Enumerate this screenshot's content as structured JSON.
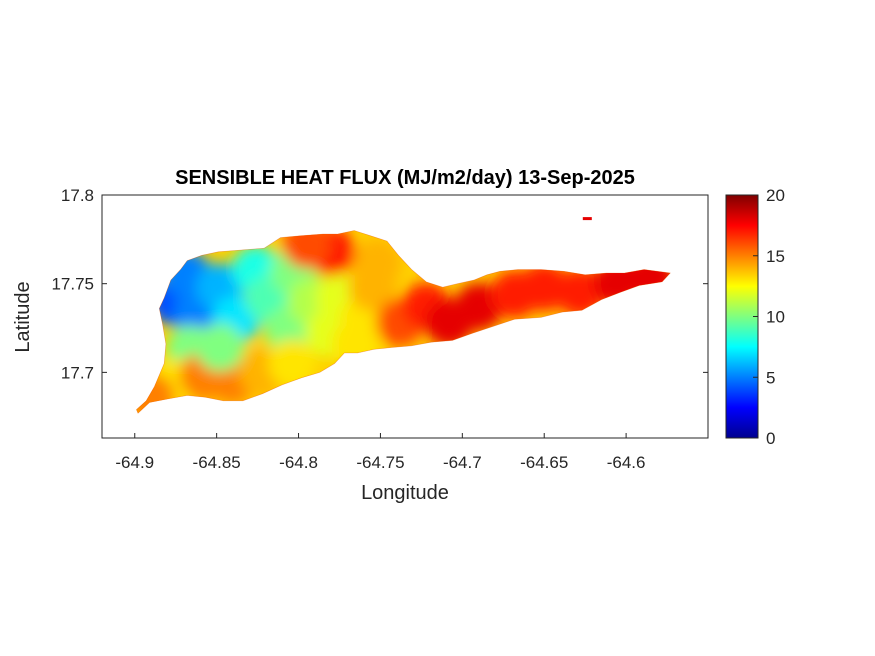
{
  "chart_data": {
    "type": "heatmap",
    "title": "SENSIBLE HEAT FLUX (MJ/m2/day) 13-Sep-2025",
    "xlabel": "Longitude",
    "ylabel": "Latitude",
    "xlim": [
      -64.92,
      -64.55
    ],
    "ylim": [
      17.663,
      17.8
    ],
    "xticks": [
      -64.9,
      -64.85,
      -64.8,
      -64.75,
      -64.7,
      -64.65,
      -64.6
    ],
    "xtick_labels": [
      "-64.9",
      "-64.85",
      "-64.8",
      "-64.75",
      "-64.7",
      "-64.65",
      "-64.6"
    ],
    "yticks": [
      17.7,
      17.75,
      17.8
    ],
    "ytick_labels": [
      "17.7",
      "17.75",
      "17.8"
    ],
    "colorbar": {
      "colormap": "jet",
      "range": [
        0,
        20
      ],
      "ticks": [
        0,
        5,
        10,
        15,
        20
      ],
      "tick_labels": [
        "0",
        "5",
        "10",
        "15",
        "20"
      ]
    },
    "region_outline": [
      [
        -64.899,
        17.679
      ],
      [
        -64.893,
        17.684
      ],
      [
        -64.888,
        17.692
      ],
      [
        -64.882,
        17.705
      ],
      [
        -64.881,
        17.716
      ],
      [
        -64.883,
        17.727
      ],
      [
        -64.885,
        17.736
      ],
      [
        -64.882,
        17.742
      ],
      [
        -64.878,
        17.752
      ],
      [
        -64.872,
        17.758
      ],
      [
        -64.868,
        17.763
      ],
      [
        -64.859,
        17.766
      ],
      [
        -64.849,
        17.768
      ],
      [
        -64.835,
        17.769
      ],
      [
        -64.821,
        17.77
      ],
      [
        -64.811,
        17.776
      ],
      [
        -64.799,
        17.777
      ],
      [
        -64.785,
        17.778
      ],
      [
        -64.776,
        17.778
      ],
      [
        -64.766,
        17.78
      ],
      [
        -64.756,
        17.777
      ],
      [
        -64.746,
        17.774
      ],
      [
        -64.739,
        17.766
      ],
      [
        -64.731,
        17.758
      ],
      [
        -64.722,
        17.751
      ],
      [
        -64.712,
        17.748
      ],
      [
        -64.703,
        17.75
      ],
      [
        -64.693,
        17.752
      ],
      [
        -64.685,
        17.755
      ],
      [
        -64.677,
        17.757
      ],
      [
        -64.666,
        17.758
      ],
      [
        -64.652,
        17.758
      ],
      [
        -64.638,
        17.757
      ],
      [
        -64.625,
        17.755
      ],
      [
        -64.612,
        17.756
      ],
      [
        -64.601,
        17.756
      ],
      [
        -64.589,
        17.758
      ],
      [
        -64.573,
        17.756
      ],
      [
        -64.578,
        17.751
      ],
      [
        -64.592,
        17.749
      ],
      [
        -64.604,
        17.745
      ],
      [
        -64.615,
        17.741
      ],
      [
        -64.627,
        17.735
      ],
      [
        -64.639,
        17.734
      ],
      [
        -64.652,
        17.731
      ],
      [
        -64.668,
        17.73
      ],
      [
        -64.681,
        17.726
      ],
      [
        -64.694,
        17.722
      ],
      [
        -64.706,
        17.718
      ],
      [
        -64.719,
        17.717
      ],
      [
        -64.731,
        17.715
      ],
      [
        -64.743,
        17.714
      ],
      [
        -64.754,
        17.713
      ],
      [
        -64.764,
        17.711
      ],
      [
        -64.772,
        17.711
      ],
      [
        -64.778,
        17.705
      ],
      [
        -64.787,
        17.7
      ],
      [
        -64.798,
        17.697
      ],
      [
        -64.81,
        17.693
      ],
      [
        -64.822,
        17.688
      ],
      [
        -64.834,
        17.684
      ],
      [
        -64.846,
        17.684
      ],
      [
        -64.857,
        17.686
      ],
      [
        -64.868,
        17.687
      ],
      [
        -64.88,
        17.685
      ],
      [
        -64.891,
        17.683
      ],
      [
        -64.898,
        17.677
      ]
    ],
    "flux_samples": [
      {
        "lon": -64.876,
        "lat": 17.74,
        "value": 4
      },
      {
        "lon": -64.862,
        "lat": 17.732,
        "value": 5
      },
      {
        "lon": -64.868,
        "lat": 17.755,
        "value": 5
      },
      {
        "lon": -64.848,
        "lat": 17.748,
        "value": 6
      },
      {
        "lon": -64.838,
        "lat": 17.73,
        "value": 7
      },
      {
        "lon": -64.826,
        "lat": 17.758,
        "value": 8
      },
      {
        "lon": -64.818,
        "lat": 17.741,
        "value": 9
      },
      {
        "lon": -64.806,
        "lat": 17.724,
        "value": 10
      },
      {
        "lon": -64.803,
        "lat": 17.757,
        "value": 10
      },
      {
        "lon": -64.792,
        "lat": 17.74,
        "value": 11
      },
      {
        "lon": -64.781,
        "lat": 17.722,
        "value": 12
      },
      {
        "lon": -64.775,
        "lat": 17.742,
        "value": 12
      },
      {
        "lon": -64.765,
        "lat": 17.716,
        "value": 13
      },
      {
        "lon": -64.76,
        "lat": 17.73,
        "value": 13
      },
      {
        "lon": -64.755,
        "lat": 17.748,
        "value": 14
      },
      {
        "lon": -64.752,
        "lat": 17.762,
        "value": 14
      },
      {
        "lon": -64.78,
        "lat": 17.768,
        "value": 17
      },
      {
        "lon": -64.795,
        "lat": 17.772,
        "value": 16
      },
      {
        "lon": -64.738,
        "lat": 17.728,
        "value": 16
      },
      {
        "lon": -64.722,
        "lat": 17.737,
        "value": 17
      },
      {
        "lon": -64.708,
        "lat": 17.728,
        "value": 18
      },
      {
        "lon": -64.69,
        "lat": 17.737,
        "value": 18
      },
      {
        "lon": -64.668,
        "lat": 17.744,
        "value": 17
      },
      {
        "lon": -64.65,
        "lat": 17.748,
        "value": 17
      },
      {
        "lon": -64.628,
        "lat": 17.745,
        "value": 17
      },
      {
        "lon": -64.605,
        "lat": 17.751,
        "value": 18
      },
      {
        "lon": -64.585,
        "lat": 17.754,
        "value": 18
      },
      {
        "lon": -64.866,
        "lat": 17.713,
        "value": 10
      },
      {
        "lon": -64.876,
        "lat": 17.694,
        "value": 13
      },
      {
        "lon": -64.858,
        "lat": 17.698,
        "value": 15
      },
      {
        "lon": -64.84,
        "lat": 17.696,
        "value": 15
      },
      {
        "lon": -64.822,
        "lat": 17.7,
        "value": 14
      },
      {
        "lon": -64.804,
        "lat": 17.705,
        "value": 13
      },
      {
        "lon": -64.848,
        "lat": 17.714,
        "value": 10
      },
      {
        "lon": -64.89,
        "lat": 17.686,
        "value": 15
      }
    ],
    "islet": {
      "lon": -64.624,
      "lat": 17.787,
      "value": 18
    }
  }
}
